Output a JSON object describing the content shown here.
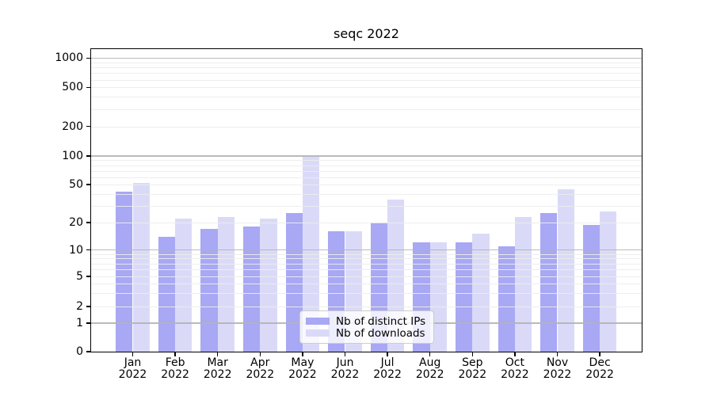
{
  "title": "seqc 2022",
  "colors": {
    "ips": "#a8a8f4",
    "downloads": "#dadaf8",
    "grid_major": "#b2b2b2",
    "grid_minor": "#ececec",
    "axis": "#000000"
  },
  "legend": {
    "items": [
      {
        "label": "Nb of distinct IPs",
        "series": "ips"
      },
      {
        "label": "Nb of downloads",
        "series": "downloads"
      }
    ]
  },
  "y_axis": {
    "tick_labels": [
      "1000",
      "500",
      "200",
      "100",
      "50",
      "20",
      "10",
      "5",
      "2",
      "1",
      "0"
    ],
    "tick_values": [
      1000,
      500,
      200,
      100,
      50,
      20,
      10,
      5,
      2,
      1,
      0
    ]
  },
  "x_axis": {
    "months": [
      "Jan",
      "Feb",
      "Mar",
      "Apr",
      "May",
      "Jun",
      "Jul",
      "Aug",
      "Sep",
      "Oct",
      "Nov",
      "Dec"
    ],
    "year": "2022"
  },
  "chart_data": {
    "type": "bar",
    "title": "seqc 2022",
    "categories": [
      "Jan 2022",
      "Feb 2022",
      "Mar 2022",
      "Apr 2022",
      "May 2022",
      "Jun 2022",
      "Jul 2022",
      "Aug 2022",
      "Sep 2022",
      "Oct 2022",
      "Nov 2022",
      "Dec 2022"
    ],
    "series": [
      {
        "name": "Nb of distinct IPs",
        "color": "#a8a8f4",
        "values": [
          42,
          14,
          17,
          18,
          25,
          16,
          20,
          12,
          12,
          11,
          25,
          19
        ]
      },
      {
        "name": "Nb of downloads",
        "color": "#dadaf8",
        "values": [
          52,
          22,
          23,
          22,
          100,
          16,
          35,
          12,
          15,
          23,
          45,
          26
        ]
      }
    ],
    "yscale": "symlog",
    "yticks": [
      0,
      1,
      2,
      5,
      10,
      20,
      50,
      100,
      200,
      500,
      1000
    ],
    "minor_gridlines": [
      2,
      3,
      4,
      5,
      6,
      7,
      8,
      9,
      20,
      30,
      40,
      50,
      60,
      70,
      80,
      90,
      200,
      300,
      400,
      500,
      600,
      700,
      800,
      900
    ],
    "major_gridlines": [
      1,
      10,
      100,
      1000
    ],
    "ylim": [
      0,
      1250
    ],
    "xlabel": "",
    "ylabel": "",
    "grid": true,
    "legend_position": "lower center"
  }
}
